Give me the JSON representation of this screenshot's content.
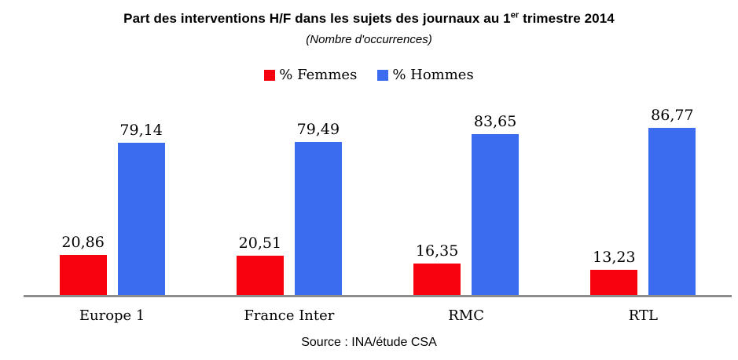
{
  "title": {
    "before": "Part des interventions H/F dans les sujets des journaux au 1",
    "sup": "er",
    "after": " trimestre 2014"
  },
  "subtitle": "(Nombre d'occurrences)",
  "source": "Source : INA/étude CSA",
  "colors": {
    "femmes": "#f7020f",
    "hommes": "#3b6cef",
    "axis": "#8c8c8c",
    "text": "#000000",
    "background": "#ffffff"
  },
  "chart_data": {
    "type": "bar",
    "title": "Part des interventions H/F dans les sujets des journaux au 1er trimestre 2014",
    "subtitle": "(Nombre d'occurrences)",
    "categories": [
      "Europe 1",
      "France Inter",
      "RMC",
      "RTL"
    ],
    "series": [
      {
        "key": "femmes",
        "name": "% Femmes",
        "color": "#f7020f",
        "values": [
          20.86,
          20.51,
          16.35,
          13.23
        ],
        "display_values": [
          "20,86",
          "20,51",
          "16,35",
          "13,23"
        ]
      },
      {
        "key": "hommes",
        "name": "% Hommes",
        "color": "#3b6cef",
        "values": [
          79.14,
          79.49,
          83.65,
          86.77
        ],
        "display_values": [
          "79,14",
          "79,49",
          "83,65",
          "86,77"
        ]
      }
    ],
    "xlabel": "",
    "ylabel": "",
    "ylim": [
      0,
      100
    ],
    "grid": false,
    "legend_position": "top",
    "value_labels": "above-bars",
    "source": "Source : INA/étude CSA"
  }
}
